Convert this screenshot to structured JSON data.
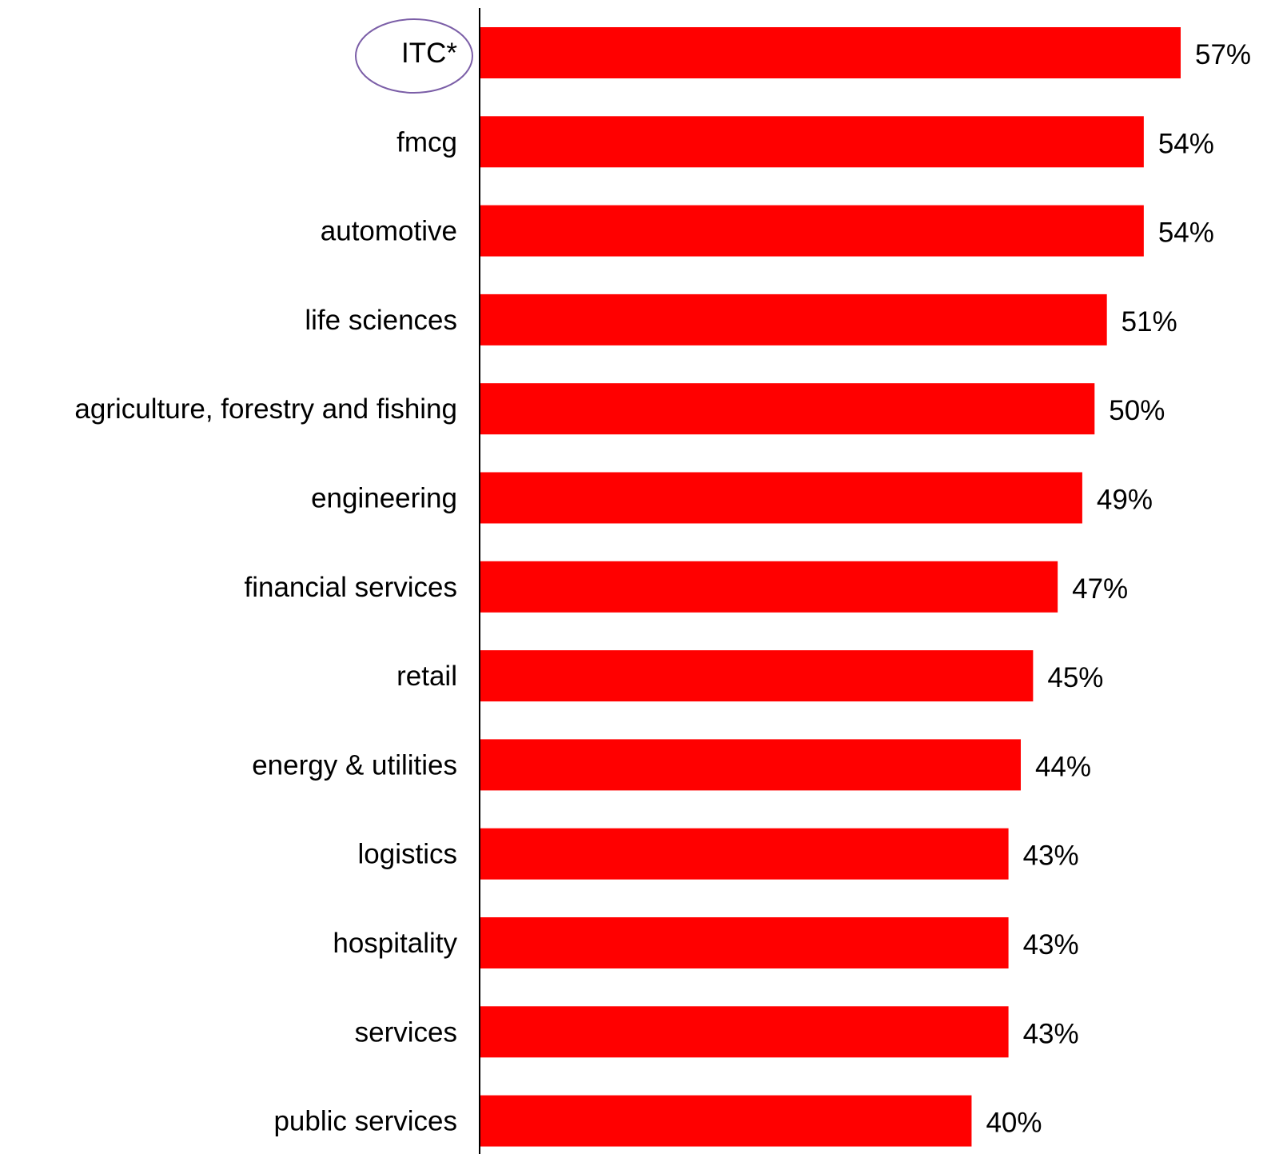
{
  "chart_data": {
    "type": "bar",
    "orientation": "horizontal",
    "title": "",
    "xlabel": "",
    "ylabel": "",
    "categories": [
      "ITC*",
      "fmcg",
      "automotive",
      "life sciences",
      "agriculture, forestry and fishing",
      "engineering",
      "financial services",
      "retail",
      "energy & utilities",
      "logistics",
      "hospitality",
      "services",
      "public services"
    ],
    "values": [
      57,
      54,
      54,
      51,
      50,
      49,
      47,
      45,
      44,
      43,
      43,
      43,
      40
    ],
    "value_labels": [
      "57%",
      "54%",
      "54%",
      "51%",
      "50%",
      "49%",
      "47%",
      "45%",
      "44%",
      "43%",
      "43%",
      "43%",
      "40%"
    ],
    "unit": "%",
    "xlim": [
      0,
      60
    ],
    "grid": false,
    "legend": "none",
    "highlighted_category": "ITC*",
    "colors": {
      "bar": "#ff0000",
      "highlight_ellipse": "#7b5ea7",
      "axis": "#000000",
      "text": "#000000"
    }
  }
}
